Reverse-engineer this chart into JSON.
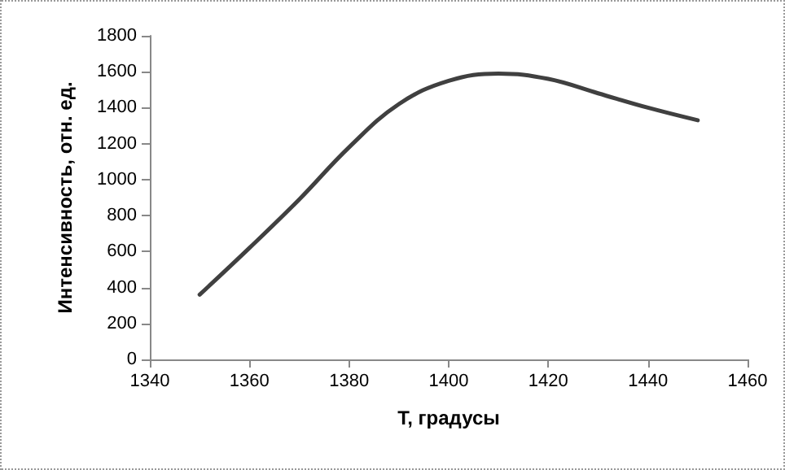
{
  "chart_data": {
    "type": "line",
    "xlabel": "T, градусы",
    "ylabel": "Интенсивность, отн. ед.",
    "x": [
      1350,
      1360,
      1370,
      1380,
      1390,
      1400,
      1410,
      1420,
      1430,
      1440,
      1450
    ],
    "series": [
      {
        "color": "#404040",
        "values": [
          360,
          620,
          890,
          1180,
          1420,
          1550,
          1590,
          1560,
          1480,
          1400,
          1330
        ]
      }
    ],
    "xlim": [
      1340,
      1460
    ],
    "xticks": [
      1340,
      1360,
      1380,
      1400,
      1420,
      1440,
      1460
    ],
    "ylim": [
      0,
      1800
    ],
    "yticks": [
      0,
      200,
      400,
      600,
      800,
      1000,
      1200,
      1400,
      1600,
      1800
    ],
    "grid": false,
    "marker": "none",
    "line_style": "solid"
  }
}
